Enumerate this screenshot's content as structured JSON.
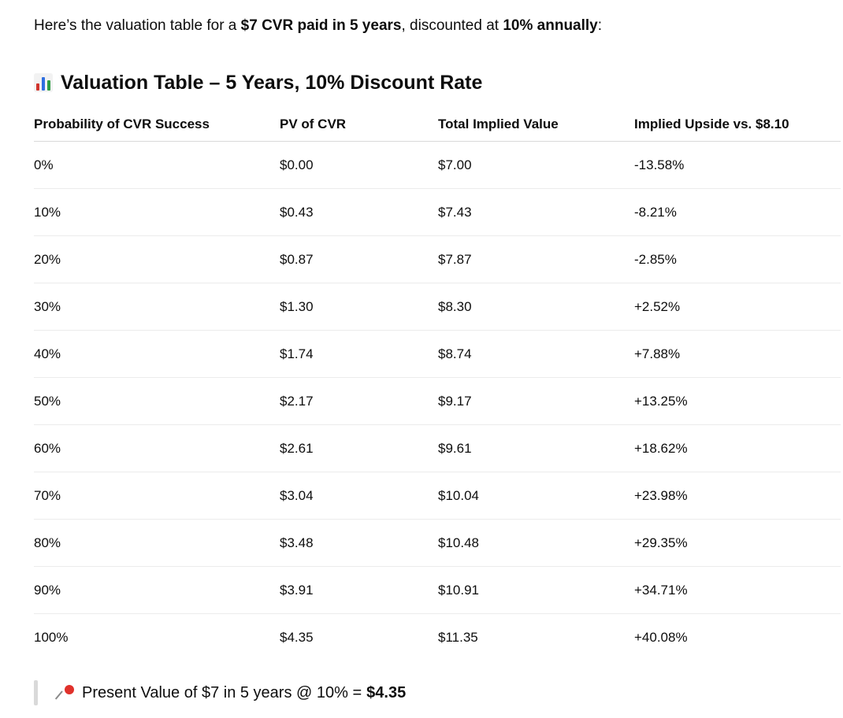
{
  "intro": {
    "part1": "Here’s the valuation table for a ",
    "bold1": "$7 CVR paid in 5 years",
    "part2": ", discounted at ",
    "bold2": "10% annually",
    "part3": ":"
  },
  "heading": {
    "icon": "bar-chart-icon",
    "title": "Valuation Table – 5 Years, 10% Discount Rate"
  },
  "table": {
    "headers": [
      "Probability of CVR Success",
      "PV of CVR",
      "Total Implied Value",
      "Implied Upside vs. $8.10"
    ],
    "rows": [
      [
        "0%",
        "$0.00",
        "$7.00",
        "-13.58%"
      ],
      [
        "10%",
        "$0.43",
        "$7.43",
        "-8.21%"
      ],
      [
        "20%",
        "$0.87",
        "$7.87",
        "-2.85%"
      ],
      [
        "30%",
        "$1.30",
        "$8.30",
        "+2.52%"
      ],
      [
        "40%",
        "$1.74",
        "$8.74",
        "+7.88%"
      ],
      [
        "50%",
        "$2.17",
        "$9.17",
        "+13.25%"
      ],
      [
        "60%",
        "$2.61",
        "$9.61",
        "+18.62%"
      ],
      [
        "70%",
        "$3.04",
        "$10.04",
        "+23.98%"
      ],
      [
        "80%",
        "$3.48",
        "$10.48",
        "+29.35%"
      ],
      [
        "90%",
        "$3.91",
        "$10.91",
        "+34.71%"
      ],
      [
        "100%",
        "$4.35",
        "$11.35",
        "+40.08%"
      ]
    ]
  },
  "note": {
    "icon": "pushpin-icon",
    "text": "Present Value of $7 in 5 years @ 10% =",
    "value": "$4.35"
  }
}
